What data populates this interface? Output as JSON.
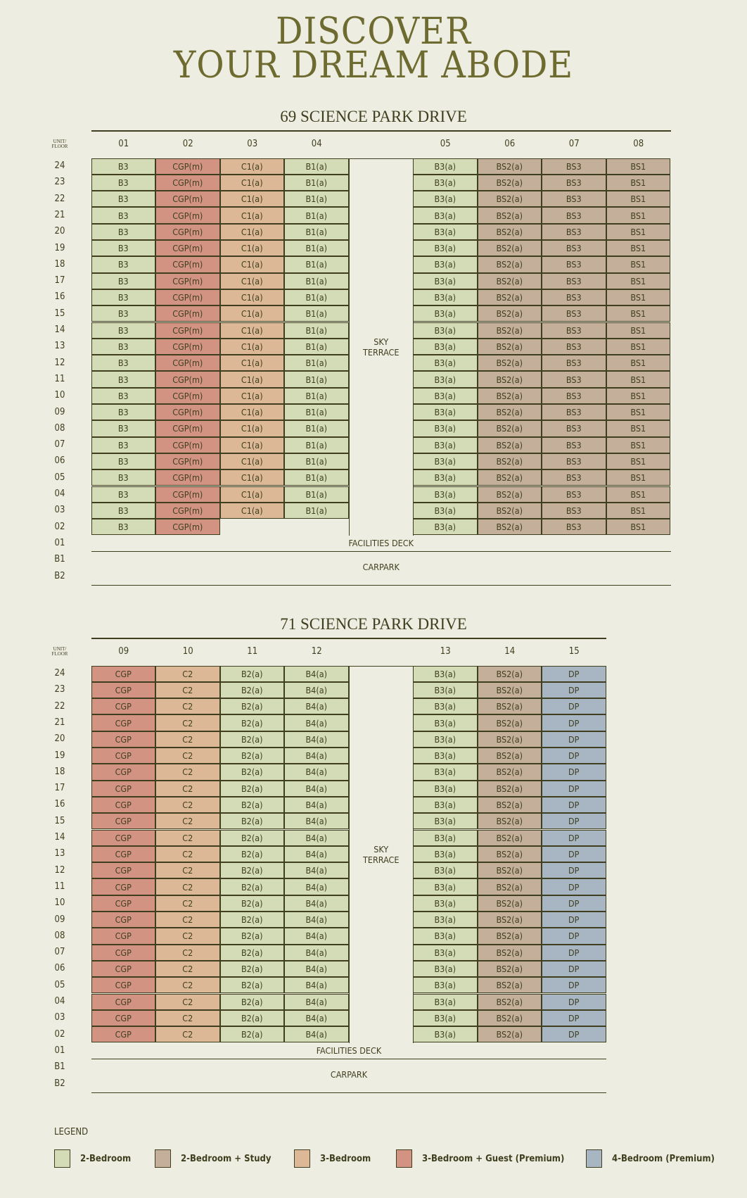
{
  "title": {
    "line1": "DISCOVER",
    "line2": "YOUR DREAM ABODE"
  },
  "unit_floor_label": {
    "line1": "UNIT/",
    "line2": "FLOOR"
  },
  "colors": {
    "2br": "#d3dcb6",
    "2brs": "#c4af9a",
    "3br": "#ddb896",
    "3brg": "#d39383",
    "4br": "#a8b6c4",
    "title": "#6d6b2f",
    "background": "#eeede1"
  },
  "floors": [
    "24",
    "23",
    "22",
    "21",
    "20",
    "19",
    "18",
    "17",
    "16",
    "15",
    "14",
    "13",
    "12",
    "11",
    "10",
    "09",
    "08",
    "07",
    "06",
    "05",
    "04",
    "03",
    "02"
  ],
  "lower_floors": [
    "01",
    "B1",
    "B2"
  ],
  "facilities_deck": "FACILITIES DECK",
  "carpark": "CARPARK",
  "sky_terrace": "SKY\nTERRACE",
  "buildings": [
    {
      "name": "69 SCIENCE PARK DRIVE",
      "left_units": [
        {
          "unit": "01",
          "type": "B3",
          "category": "2br",
          "lowest_floor": "02"
        },
        {
          "unit": "02",
          "type": "CGP(m)",
          "category": "3brg",
          "lowest_floor": "02"
        },
        {
          "unit": "03",
          "type": "C1(a)",
          "category": "3br",
          "lowest_floor": "03"
        },
        {
          "unit": "04",
          "type": "B1(a)",
          "category": "2br",
          "lowest_floor": "03"
        }
      ],
      "right_units": [
        {
          "unit": "05",
          "type": "B3(a)",
          "category": "2br",
          "lowest_floor": "02"
        },
        {
          "unit": "06",
          "type": "BS2(a)",
          "category": "2brs",
          "lowest_floor": "02"
        },
        {
          "unit": "07",
          "type": "BS3",
          "category": "2brs",
          "lowest_floor": "02"
        },
        {
          "unit": "08",
          "type": "BS1",
          "category": "2brs",
          "lowest_floor": "02"
        }
      ]
    },
    {
      "name": "71 SCIENCE PARK DRIVE",
      "left_units": [
        {
          "unit": "09",
          "type": "CGP",
          "category": "3brg",
          "lowest_floor": "02"
        },
        {
          "unit": "10",
          "type": "C2",
          "category": "3br",
          "lowest_floor": "02"
        },
        {
          "unit": "11",
          "type": "B2(a)",
          "category": "2br",
          "lowest_floor": "02"
        },
        {
          "unit": "12",
          "type": "B4(a)",
          "category": "2br",
          "lowest_floor": "02"
        }
      ],
      "right_units": [
        {
          "unit": "13",
          "type": "B3(a)",
          "category": "2br",
          "lowest_floor": "02"
        },
        {
          "unit": "14",
          "type": "BS2(a)",
          "category": "2brs",
          "lowest_floor": "02"
        },
        {
          "unit": "15",
          "type": "DP",
          "category": "4br",
          "lowest_floor": "02"
        }
      ]
    }
  ],
  "legend": {
    "title": "LEGEND",
    "items": [
      {
        "label": "2-Bedroom",
        "category": "2br"
      },
      {
        "label": "2-Bedroom + Study",
        "category": "2brs"
      },
      {
        "label": "3-Bedroom",
        "category": "3br"
      },
      {
        "label": "3-Bedroom + Guest (Premium)",
        "category": "3brg"
      },
      {
        "label": "4-Bedroom (Premium)",
        "category": "4br"
      }
    ]
  }
}
